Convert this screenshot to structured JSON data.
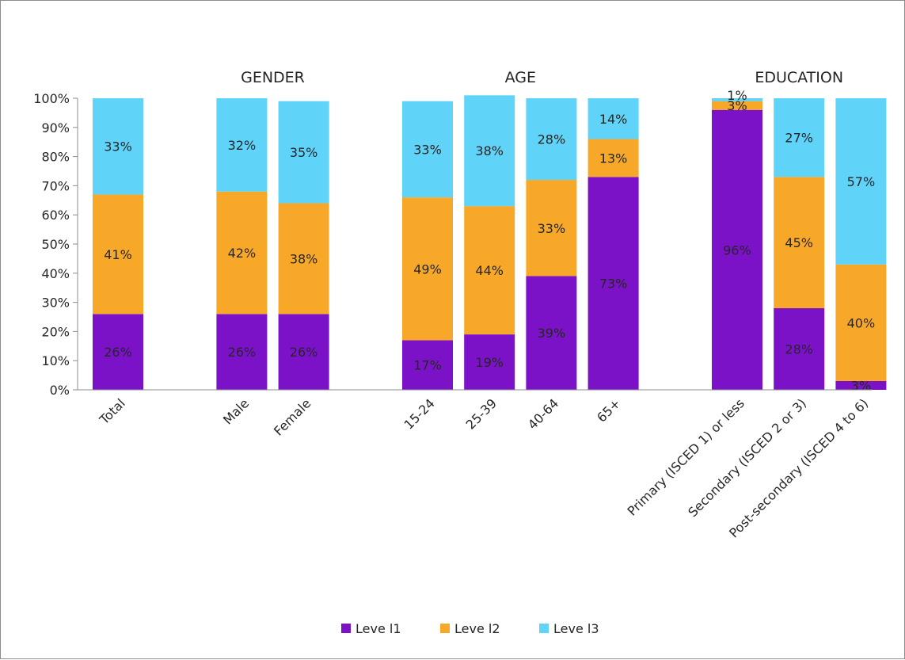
{
  "chart_data": {
    "type": "bar",
    "stacked": true,
    "percent_stacked": true,
    "categories": [
      "Total",
      "Male",
      "Female",
      "15-24",
      "25-39",
      "40-64",
      "65+",
      "Primary (ISCED 1) or less",
      "Secondary (ISCED 2 or 3)",
      "Post-secondary (ISCED 4 to 6)"
    ],
    "groups": [
      {
        "label": "GENDER",
        "categories": [
          "Male",
          "Female"
        ]
      },
      {
        "label": "AGE",
        "categories": [
          "15-24",
          "25-39",
          "40-64",
          "65+"
        ]
      },
      {
        "label": "EDUCATION",
        "categories": [
          "Primary (ISCED 1) or less",
          "Secondary (ISCED 2 or 3)",
          "Post-secondary (ISCED 4 to 6)"
        ]
      }
    ],
    "series": [
      {
        "name": "Leve l1",
        "color": "#7b12c8",
        "values": [
          26,
          26,
          26,
          17,
          19,
          39,
          73,
          96,
          28,
          3
        ],
        "labels": [
          "26%",
          "26%",
          "26%",
          "17%",
          "19%",
          "39%",
          "73%",
          "96%",
          "28%",
          "3%"
        ]
      },
      {
        "name": "Leve l2",
        "color": "#f8a829",
        "values": [
          41,
          42,
          38,
          49,
          44,
          33,
          13,
          3,
          45,
          40
        ],
        "labels": [
          "41%",
          "42%",
          "38%",
          "49%",
          "44%",
          "33%",
          "13%",
          "3%",
          "45%",
          "40%"
        ]
      },
      {
        "name": "Leve l3",
        "color": "#5fd3f8",
        "values": [
          33,
          32,
          35,
          33,
          38,
          28,
          14,
          1,
          27,
          57
        ],
        "labels": [
          "33%",
          "32%",
          "35%",
          "33%",
          "38%",
          "28%",
          "14%",
          "1%",
          "27%",
          "57%"
        ]
      }
    ],
    "ylim": [
      0,
      100
    ],
    "yticks": [
      "0%",
      "10%",
      "20%",
      "30%",
      "40%",
      "50%",
      "60%",
      "70%",
      "80%",
      "90%",
      "100%"
    ],
    "grid": false,
    "legend_position": "bottom"
  }
}
